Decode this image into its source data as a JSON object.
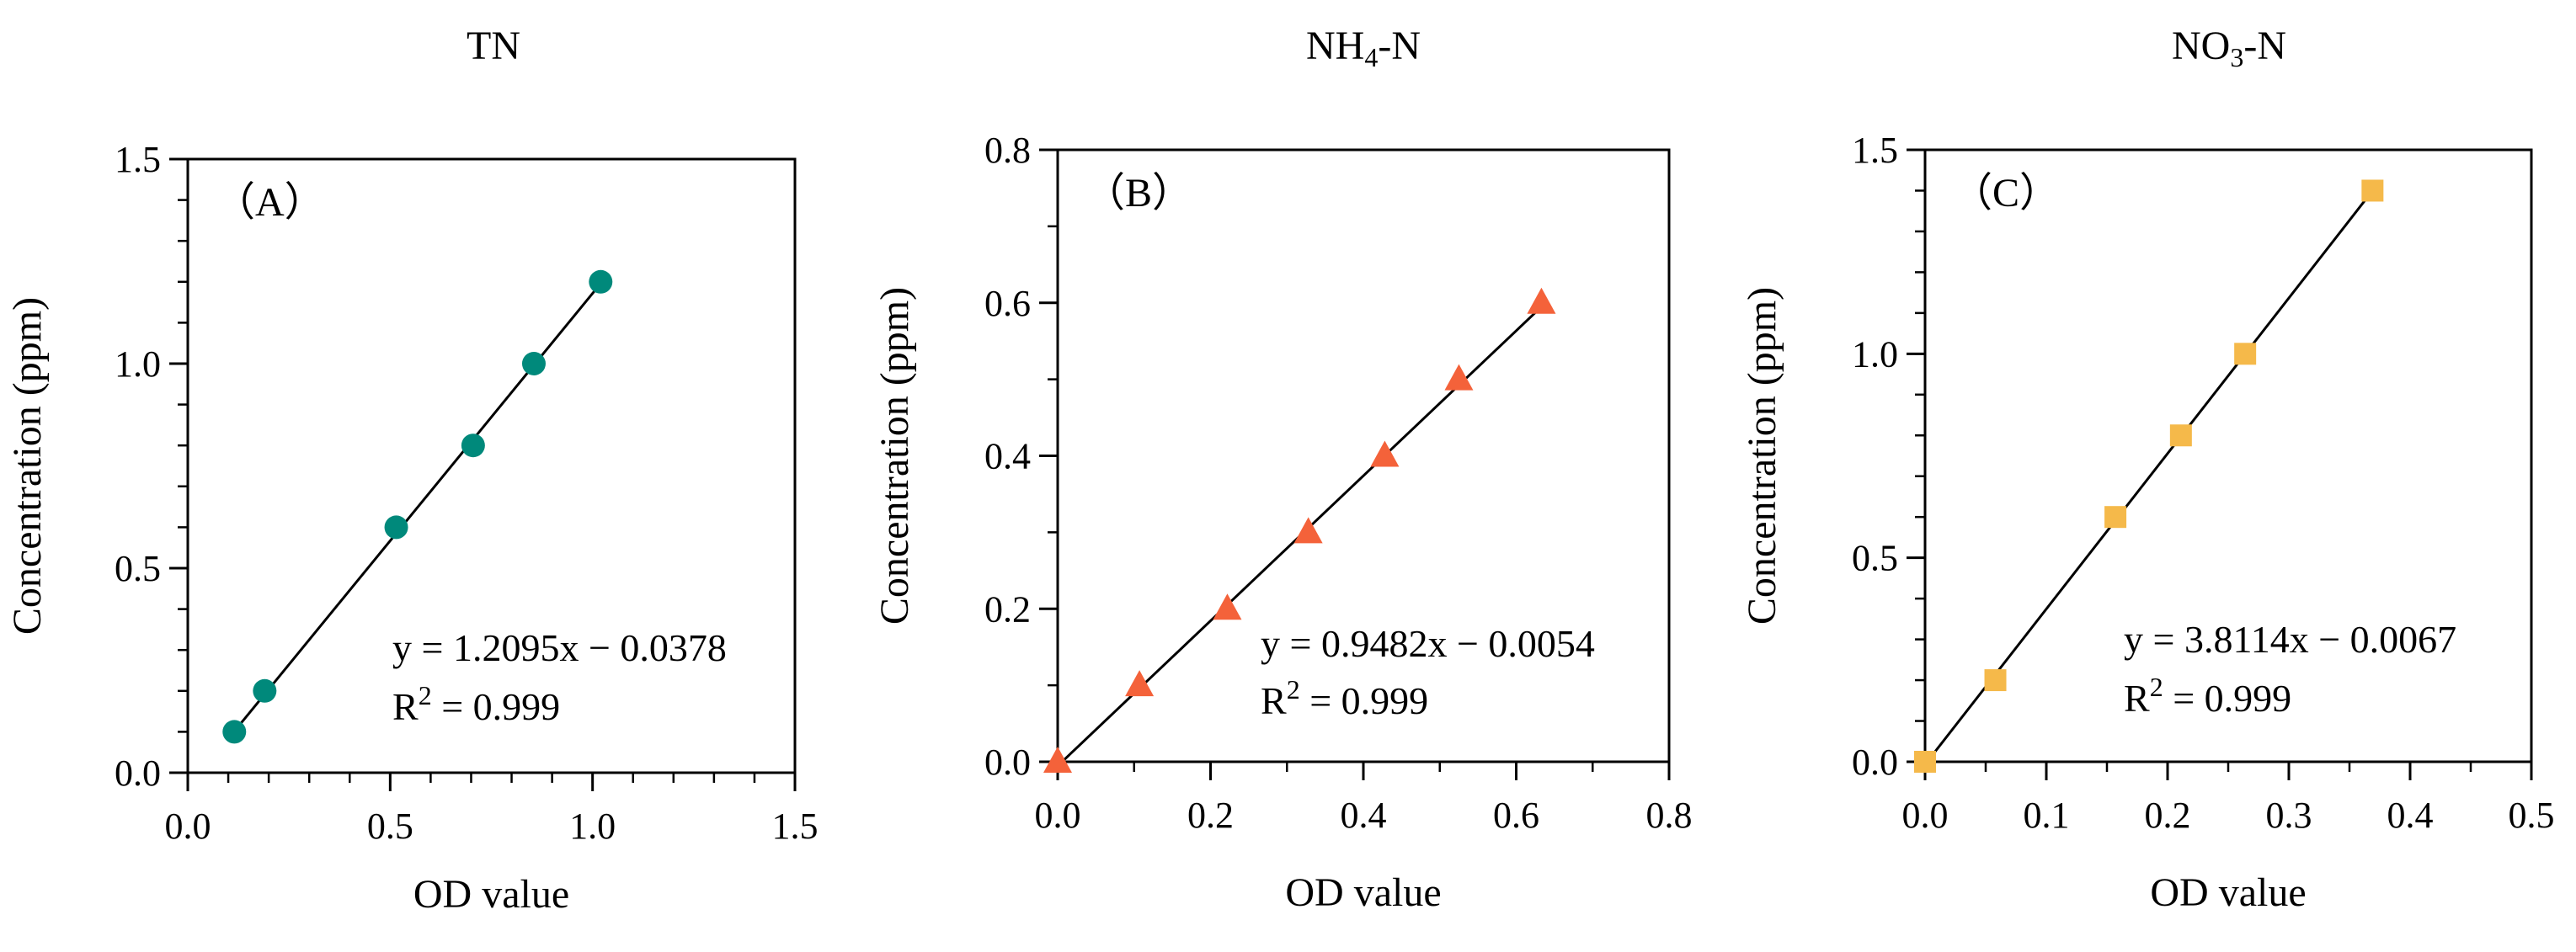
{
  "chart_data": [
    {
      "type": "scatter",
      "title": "TN",
      "title_parts": [
        {
          "text": "TN",
          "sub": false
        }
      ],
      "panel_label": "（A）",
      "xlabel": "OD value",
      "ylabel": "Concentration (ppm)",
      "xlim": [
        0,
        1.5
      ],
      "ylim": [
        0,
        1.5
      ],
      "xticks": [
        "0.0",
        "0.5",
        "1.0",
        "1.5"
      ],
      "yticks": [
        "0.0",
        "0.5",
        "1.0",
        "1.5"
      ],
      "x_minor_step": 0.1,
      "y_minor_step": 0.1,
      "series": [
        {
          "name": "TN",
          "marker": "circle",
          "color": "#00897B",
          "points": [
            [
              0.115,
              0.1
            ],
            [
              0.19,
              0.2
            ],
            [
              0.515,
              0.6
            ],
            [
              0.705,
              0.8
            ],
            [
              0.855,
              1.0
            ],
            [
              1.02,
              1.2
            ]
          ]
        }
      ],
      "fit": {
        "slope": 1.2095,
        "intercept": -0.0378,
        "x_range": [
          0.115,
          1.02
        ]
      },
      "equation": "y = 1.2095x − 0.0378",
      "r2_label": "R",
      "r2_sup": "2",
      "r2_value": " = 0.999"
    },
    {
      "type": "scatter",
      "title": "NH4-N",
      "title_parts": [
        {
          "text": "NH",
          "sub": false
        },
        {
          "text": "4",
          "sub": true
        },
        {
          "text": "-N",
          "sub": false
        }
      ],
      "panel_label": "（B）",
      "xlabel": "OD value",
      "ylabel": "Concentration (ppm)",
      "xlim": [
        0,
        0.8
      ],
      "ylim": [
        0,
        0.8
      ],
      "xticks": [
        "0.0",
        "0.2",
        "0.4",
        "0.6",
        "0.8"
      ],
      "yticks": [
        "0.0",
        "0.2",
        "0.4",
        "0.6",
        "0.8"
      ],
      "x_minor_step": 0.1,
      "y_minor_step": 0.1,
      "series": [
        {
          "name": "NH4-N",
          "marker": "triangle",
          "color": "#F4623A",
          "points": [
            [
              0.0,
              0.0
            ],
            [
              0.107,
              0.1
            ],
            [
              0.222,
              0.2
            ],
            [
              0.328,
              0.3
            ],
            [
              0.428,
              0.4
            ],
            [
              0.525,
              0.5
            ],
            [
              0.633,
              0.6
            ]
          ]
        }
      ],
      "fit": {
        "slope": 0.9482,
        "intercept": -0.0054,
        "x_range": [
          0.0,
          0.633
        ]
      },
      "equation": "y = 0.9482x − 0.0054",
      "r2_label": "R",
      "r2_sup": "2",
      "r2_value": " = 0.999"
    },
    {
      "type": "scatter",
      "title": "NO3-N",
      "title_parts": [
        {
          "text": "NO",
          "sub": false
        },
        {
          "text": "3",
          "sub": true
        },
        {
          "text": "-N",
          "sub": false
        }
      ],
      "panel_label": "（C）",
      "xlabel": "OD value",
      "ylabel": "Concentration (ppm)",
      "xlim": [
        0,
        0.5
      ],
      "ylim": [
        0,
        1.5
      ],
      "xticks": [
        "0.0",
        "0.1",
        "0.2",
        "0.3",
        "0.4",
        "0.5"
      ],
      "yticks": [
        "0.0",
        "0.5",
        "1.0",
        "1.5"
      ],
      "x_minor_step": 0.05,
      "y_minor_step": 0.1,
      "series": [
        {
          "name": "NO3-N",
          "marker": "square",
          "color": "#F5B94A",
          "points": [
            [
              0.0,
              0.0
            ],
            [
              0.058,
              0.2
            ],
            [
              0.157,
              0.6
            ],
            [
              0.211,
              0.8
            ],
            [
              0.264,
              1.0
            ],
            [
              0.369,
              1.4
            ]
          ]
        }
      ],
      "fit": {
        "slope": 3.8114,
        "intercept": -0.0067,
        "x_range": [
          0.0,
          0.369
        ]
      },
      "equation": "y = 3.8114x − 0.0067",
      "r2_label": "R",
      "r2_sup": "2",
      "r2_value": " = 0.999"
    }
  ]
}
